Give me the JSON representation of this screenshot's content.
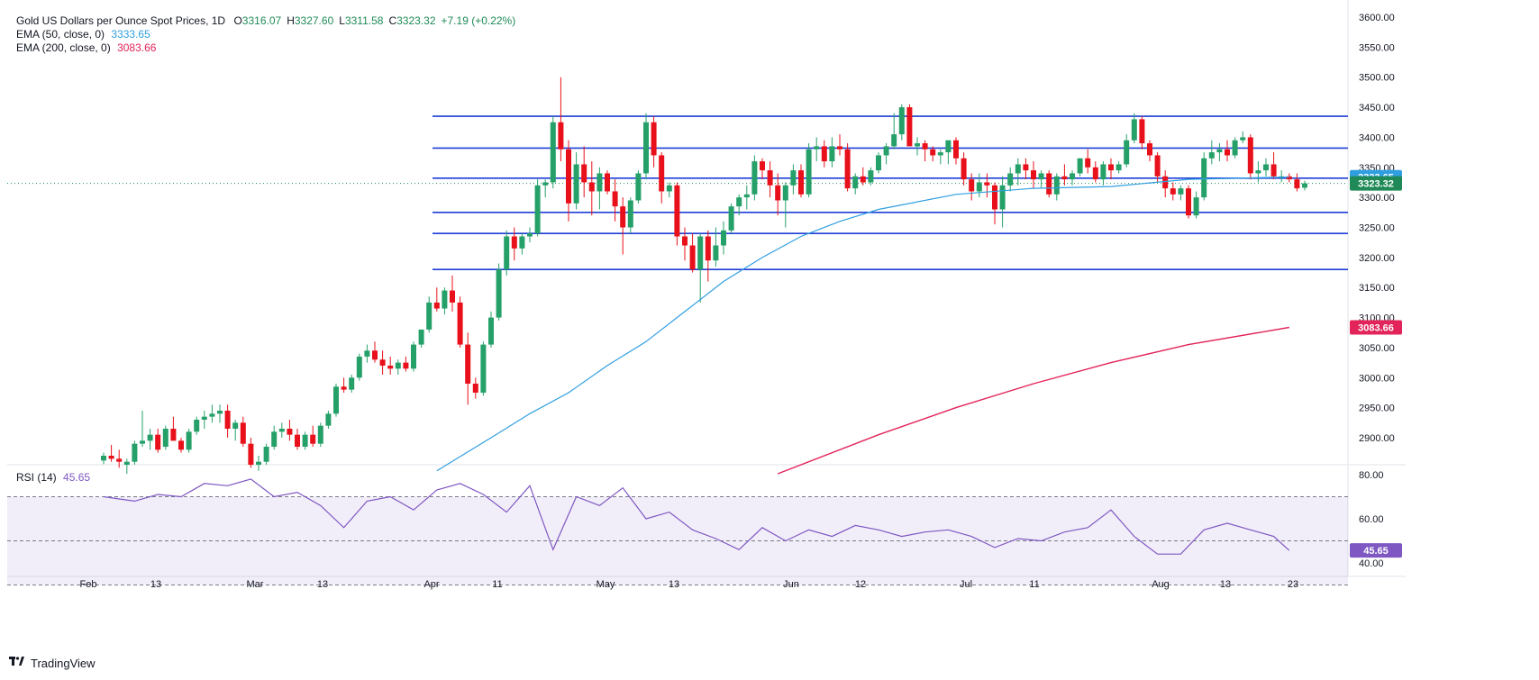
{
  "header": {
    "symbol": "Gold US Dollars per Ounce Spot Prices, 1D",
    "ohlc": [
      {
        "key": "O",
        "value": "3316.07"
      },
      {
        "key": "H",
        "value": "3327.60"
      },
      {
        "key": "L",
        "value": "3311.58"
      },
      {
        "key": "C",
        "value": "3323.32"
      },
      {
        "key": "",
        "value": "+7.19 (+0.22%)"
      }
    ],
    "ema50_label": "EMA (50, close, 0)",
    "ema50_value": "3333.65",
    "ema200_label": "EMA (200, close, 0)",
    "ema200_value": "3083.66",
    "rsi_label": "RSI (14)",
    "rsi_value": "45.65"
  },
  "footer": {
    "brand": "TradingView"
  },
  "colors": {
    "up": "#26a069",
    "down": "#e8101a",
    "ema50": "#2f9fe0",
    "ema200": "#e2245a",
    "rsi": "#7e57c2",
    "level": "#1e3fd6",
    "price_tag": "#1f8a57"
  },
  "chart_data": [
    {
      "type": "candlestick",
      "title": "Gold US Dollars per Ounce Spot Prices, 1D",
      "ylim": [
        2840,
        3610
      ],
      "y_ticks": [
        2900,
        2950,
        3000,
        3050,
        3100,
        3150,
        3200,
        3250,
        3300,
        3350,
        3400,
        3450,
        3500,
        3550,
        3600
      ],
      "x_ticks": [
        "Feb",
        "13",
        "Mar",
        "13",
        "Apr",
        "11",
        "May",
        "13",
        "Jun",
        "12",
        "Jul",
        "11",
        "Aug",
        "13",
        "23"
      ],
      "price_tags": {
        "ema50": "3333.65",
        "close": "3323.32",
        "ema200": "3083.66"
      },
      "horizontal_levels": [
        3435,
        3382,
        3332,
        3275,
        3240,
        3180
      ],
      "candles": [
        [
          2862,
          2875,
          2856,
          2870
        ],
        [
          2870,
          2888,
          2860,
          2865
        ],
        [
          2865,
          2880,
          2850,
          2860
        ],
        [
          2855,
          2865,
          2840,
          2860
        ],
        [
          2860,
          2895,
          2855,
          2890
        ],
        [
          2890,
          2945,
          2885,
          2895
        ],
        [
          2895,
          2915,
          2880,
          2905
        ],
        [
          2905,
          2915,
          2875,
          2880
        ],
        [
          2885,
          2920,
          2880,
          2915
        ],
        [
          2915,
          2935,
          2895,
          2895
        ],
        [
          2895,
          2900,
          2875,
          2880
        ],
        [
          2880,
          2915,
          2875,
          2910
        ],
        [
          2910,
          2935,
          2905,
          2930
        ],
        [
          2930,
          2945,
          2915,
          2935
        ],
        [
          2935,
          2955,
          2925,
          2940
        ],
        [
          2940,
          2955,
          2925,
          2945
        ],
        [
          2945,
          2955,
          2900,
          2915
        ],
        [
          2915,
          2930,
          2895,
          2925
        ],
        [
          2925,
          2935,
          2885,
          2890
        ],
        [
          2890,
          2900,
          2850,
          2855
        ],
        [
          2855,
          2870,
          2845,
          2860
        ],
        [
          2860,
          2890,
          2855,
          2885
        ],
        [
          2885,
          2920,
          2880,
          2910
        ],
        [
          2910,
          2925,
          2900,
          2915
        ],
        [
          2915,
          2930,
          2895,
          2905
        ],
        [
          2905,
          2915,
          2880,
          2885
        ],
        [
          2885,
          2910,
          2880,
          2905
        ],
        [
          2905,
          2920,
          2885,
          2890
        ],
        [
          2890,
          2925,
          2885,
          2920
        ],
        [
          2920,
          2945,
          2915,
          2940
        ],
        [
          2940,
          2990,
          2935,
          2985
        ],
        [
          2985,
          3000,
          2975,
          2980
        ],
        [
          2980,
          3005,
          2975,
          3000
        ],
        [
          3000,
          3040,
          2995,
          3035
        ],
        [
          3035,
          3055,
          3025,
          3045
        ],
        [
          3045,
          3060,
          3025,
          3030
        ],
        [
          3030,
          3045,
          3005,
          3020
        ],
        [
          3020,
          3035,
          3005,
          3015
        ],
        [
          3015,
          3030,
          3005,
          3025
        ],
        [
          3025,
          3035,
          3010,
          3015
        ],
        [
          3015,
          3060,
          3010,
          3055
        ],
        [
          3055,
          3080,
          3050,
          3080
        ],
        [
          3080,
          3135,
          3075,
          3125
        ],
        [
          3125,
          3150,
          3110,
          3115
        ],
        [
          3115,
          3150,
          3105,
          3145
        ],
        [
          3145,
          3170,
          3110,
          3125
        ],
        [
          3125,
          3135,
          3050,
          3055
        ],
        [
          3055,
          3075,
          2955,
          2990
        ],
        [
          2990,
          3000,
          2965,
          2975
        ],
        [
          2975,
          3060,
          2970,
          3055
        ],
        [
          3055,
          3110,
          3050,
          3100
        ],
        [
          3100,
          3190,
          3095,
          3180
        ],
        [
          3180,
          3245,
          3170,
          3235
        ],
        [
          3235,
          3250,
          3195,
          3215
        ],
        [
          3215,
          3240,
          3205,
          3235
        ],
        [
          3235,
          3250,
          3225,
          3240
        ],
        [
          3240,
          3330,
          3235,
          3320
        ],
        [
          3320,
          3330,
          3300,
          3325
        ],
        [
          3325,
          3435,
          3315,
          3425
        ],
        [
          3425,
          3500,
          3360,
          3380
        ],
        [
          3380,
          3395,
          3260,
          3290
        ],
        [
          3290,
          3375,
          3280,
          3355
        ],
        [
          3355,
          3385,
          3300,
          3325
        ],
        [
          3325,
          3360,
          3270,
          3310
        ],
        [
          3310,
          3350,
          3280,
          3340
        ],
        [
          3340,
          3345,
          3305,
          3310
        ],
        [
          3310,
          3330,
          3260,
          3285
        ],
        [
          3285,
          3300,
          3205,
          3250
        ],
        [
          3250,
          3300,
          3240,
          3295
        ],
        [
          3295,
          3345,
          3290,
          3340
        ],
        [
          3340,
          3440,
          3330,
          3425
        ],
        [
          3425,
          3435,
          3350,
          3370
        ],
        [
          3370,
          3375,
          3290,
          3310
        ],
        [
          3310,
          3325,
          3300,
          3320
        ],
        [
          3320,
          3325,
          3220,
          3235
        ],
        [
          3235,
          3250,
          3195,
          3220
        ],
        [
          3220,
          3240,
          3175,
          3180
        ],
        [
          3180,
          3240,
          3125,
          3235
        ],
        [
          3235,
          3245,
          3160,
          3195
        ],
        [
          3195,
          3250,
          3185,
          3220
        ],
        [
          3220,
          3260,
          3205,
          3245
        ],
        [
          3245,
          3290,
          3240,
          3285
        ],
        [
          3285,
          3305,
          3270,
          3300
        ],
        [
          3300,
          3320,
          3280,
          3305
        ],
        [
          3305,
          3370,
          3295,
          3360
        ],
        [
          3360,
          3365,
          3330,
          3345
        ],
        [
          3345,
          3360,
          3300,
          3320
        ],
        [
          3320,
          3340,
          3270,
          3295
        ],
        [
          3295,
          3325,
          3250,
          3320
        ],
        [
          3320,
          3355,
          3305,
          3345
        ],
        [
          3345,
          3355,
          3300,
          3305
        ],
        [
          3305,
          3390,
          3300,
          3380
        ],
        [
          3380,
          3400,
          3360,
          3385
        ],
        [
          3385,
          3395,
          3350,
          3360
        ],
        [
          3360,
          3400,
          3350,
          3385
        ],
        [
          3385,
          3405,
          3370,
          3380
        ],
        [
          3380,
          3390,
          3310,
          3315
        ],
        [
          3315,
          3340,
          3305,
          3335
        ],
        [
          3335,
          3350,
          3320,
          3325
        ],
        [
          3325,
          3350,
          3320,
          3345
        ],
        [
          3345,
          3375,
          3340,
          3370
        ],
        [
          3370,
          3390,
          3355,
          3385
        ],
        [
          3385,
          3440,
          3380,
          3405
        ],
        [
          3405,
          3455,
          3395,
          3450
        ],
        [
          3450,
          3455,
          3390,
          3385
        ],
        [
          3385,
          3400,
          3370,
          3390
        ],
        [
          3390,
          3395,
          3360,
          3380
        ],
        [
          3380,
          3385,
          3360,
          3370
        ],
        [
          3370,
          3380,
          3355,
          3375
        ],
        [
          3375,
          3395,
          3355,
          3395
        ],
        [
          3395,
          3400,
          3355,
          3365
        ],
        [
          3365,
          3375,
          3320,
          3330
        ],
        [
          3330,
          3340,
          3295,
          3310
        ],
        [
          3310,
          3340,
          3300,
          3325
        ],
        [
          3325,
          3340,
          3300,
          3320
        ],
        [
          3320,
          3325,
          3255,
          3280
        ],
        [
          3280,
          3335,
          3250,
          3320
        ],
        [
          3320,
          3350,
          3310,
          3340
        ],
        [
          3340,
          3365,
          3320,
          3355
        ],
        [
          3355,
          3365,
          3330,
          3345
        ],
        [
          3345,
          3360,
          3315,
          3330
        ],
        [
          3330,
          3345,
          3315,
          3340
        ],
        [
          3340,
          3345,
          3300,
          3305
        ],
        [
          3305,
          3340,
          3295,
          3335
        ],
        [
          3335,
          3355,
          3320,
          3330
        ],
        [
          3330,
          3345,
          3320,
          3340
        ],
        [
          3340,
          3365,
          3335,
          3365
        ],
        [
          3365,
          3380,
          3340,
          3350
        ],
        [
          3350,
          3360,
          3325,
          3330
        ],
        [
          3330,
          3360,
          3320,
          3355
        ],
        [
          3355,
          3365,
          3330,
          3345
        ],
        [
          3345,
          3360,
          3340,
          3355
        ],
        [
          3355,
          3405,
          3350,
          3395
        ],
        [
          3395,
          3440,
          3390,
          3430
        ],
        [
          3430,
          3435,
          3380,
          3390
        ],
        [
          3390,
          3395,
          3360,
          3370
        ],
        [
          3370,
          3375,
          3325,
          3335
        ],
        [
          3335,
          3345,
          3300,
          3315
        ],
        [
          3315,
          3325,
          3295,
          3305
        ],
        [
          3305,
          3320,
          3295,
          3315
        ],
        [
          3315,
          3320,
          3265,
          3270
        ],
        [
          3270,
          3310,
          3265,
          3300
        ],
        [
          3300,
          3375,
          3295,
          3365
        ],
        [
          3365,
          3395,
          3355,
          3375
        ],
        [
          3375,
          3390,
          3360,
          3380
        ],
        [
          3380,
          3395,
          3360,
          3370
        ],
        [
          3370,
          3400,
          3365,
          3395
        ],
        [
          3395,
          3410,
          3390,
          3400
        ],
        [
          3400,
          3405,
          3330,
          3340
        ],
        [
          3340,
          3360,
          3325,
          3345
        ],
        [
          3345,
          3365,
          3335,
          3355
        ],
        [
          3355,
          3375,
          3330,
          3335
        ],
        [
          3335,
          3345,
          3325,
          3335
        ],
        [
          3335,
          3340,
          3325,
          3330
        ],
        [
          3330,
          3340,
          3310,
          3315
        ],
        [
          3316.07,
          3327.6,
          3311.58,
          3323.32
        ]
      ],
      "series": [
        {
          "name": "EMA (50, close, 0)",
          "x": [
            43,
            50,
            55,
            60,
            65,
            70,
            75,
            80,
            85,
            90,
            95,
            100,
            110,
            120,
            130,
            140,
            150,
            153
          ],
          "values": [
            2845,
            2900,
            2940,
            2975,
            3020,
            3060,
            3110,
            3160,
            3200,
            3235,
            3260,
            3280,
            3305,
            3315,
            3318,
            3330,
            3333,
            3333.65
          ]
        },
        {
          "name": "EMA (200, close, 0)",
          "x": [
            87,
            100,
            110,
            120,
            130,
            140,
            153
          ],
          "values": [
            2840,
            2905,
            2950,
            2990,
            3025,
            3055,
            3083.66
          ]
        }
      ]
    },
    {
      "type": "line",
      "title": "RSI (14)",
      "ylim": [
        25,
        83
      ],
      "y_ticks": [
        40,
        60,
        80
      ],
      "band": [
        30,
        70
      ],
      "midline": 50,
      "series": [
        {
          "name": "RSI (14)",
          "x": [
            0,
            4,
            7,
            10,
            13,
            16,
            19,
            22,
            25,
            28,
            31,
            34,
            37,
            40,
            43,
            46,
            49,
            52,
            55,
            58,
            61,
            64,
            67,
            70,
            73,
            76,
            79,
            82,
            85,
            88,
            91,
            94,
            97,
            100,
            103,
            106,
            109,
            112,
            115,
            118,
            121,
            124,
            127,
            130,
            133,
            136,
            139,
            142,
            145,
            148,
            151,
            153
          ],
          "values": [
            70,
            68,
            71,
            70,
            76,
            75,
            78,
            70,
            72,
            66,
            56,
            68,
            70,
            64,
            73,
            76,
            71,
            63,
            75,
            46,
            70,
            66,
            74,
            60,
            63,
            55,
            51,
            46,
            56,
            50,
            55,
            52,
            57,
            55,
            52,
            54,
            55,
            52,
            47,
            51,
            50,
            54,
            56,
            64,
            52,
            44,
            44,
            55,
            58,
            55,
            52,
            45.65
          ]
        }
      ]
    }
  ]
}
